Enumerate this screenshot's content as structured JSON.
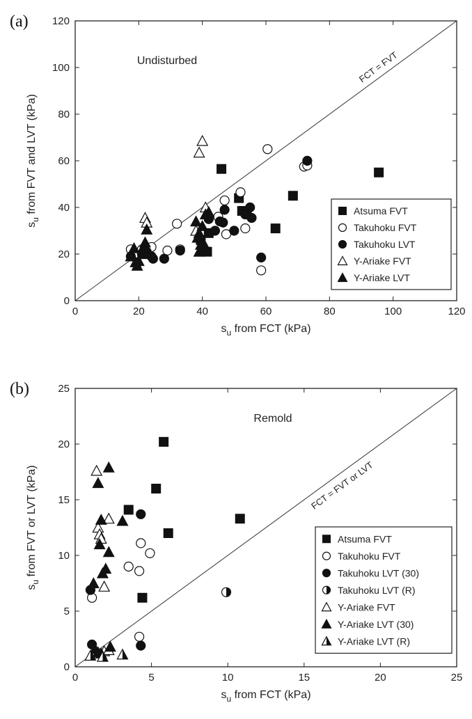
{
  "chart_data": [
    {
      "type": "scatter",
      "panel_label": "(a)",
      "annotation": "Undisturbed",
      "line_label": "FCT = FVT",
      "xlabel": {
        "main": "s",
        "sub": "u",
        "rest": " from FCT (kPa)"
      },
      "ylabel": {
        "main": "s",
        "sub": "u",
        "rest": " from FVT and LVT (kPa)"
      },
      "xlim": [
        0,
        120
      ],
      "ylim": [
        0,
        120
      ],
      "xticks": [
        0,
        20,
        40,
        60,
        80,
        100,
        120
      ],
      "yticks": [
        0,
        20,
        40,
        60,
        80,
        100,
        120
      ],
      "legend_position": "lower-right",
      "series": [
        {
          "name": "Atsuma FVT",
          "marker": "square-filled",
          "points": [
            [
              46,
              56.5
            ],
            [
              51.5,
              44
            ],
            [
              52.5,
              38.5
            ],
            [
              54,
              38
            ],
            [
              63,
              31
            ],
            [
              68.5,
              45
            ],
            [
              95.5,
              55
            ],
            [
              41.5,
              21
            ],
            [
              42,
              29
            ],
            [
              39.5,
              26
            ]
          ]
        },
        {
          "name": "Takuhoku FVT",
          "marker": "circle-open",
          "points": [
            [
              17.5,
              22
            ],
            [
              19,
              20
            ],
            [
              21,
              22
            ],
            [
              24,
              23
            ],
            [
              29,
              21.5
            ],
            [
              32,
              33
            ],
            [
              33,
              22
            ],
            [
              45,
              36
            ],
            [
              47,
              43
            ],
            [
              47.5,
              28.5
            ],
            [
              52,
              46.5
            ],
            [
              53.5,
              31
            ],
            [
              58.5,
              13
            ],
            [
              60.5,
              65
            ],
            [
              72,
              57.5
            ],
            [
              73,
              58
            ]
          ]
        },
        {
          "name": "Takuhoku LVT",
          "marker": "circle-filled",
          "points": [
            [
              17.5,
              19
            ],
            [
              21,
              20
            ],
            [
              22.5,
              21
            ],
            [
              24,
              19
            ],
            [
              24.5,
              18
            ],
            [
              28,
              18
            ],
            [
              33,
              21.5
            ],
            [
              42,
              35
            ],
            [
              44,
              30
            ],
            [
              45.5,
              34
            ],
            [
              46.5,
              33.5
            ],
            [
              47,
              39
            ],
            [
              50,
              30
            ],
            [
              53.5,
              37
            ],
            [
              55,
              40
            ],
            [
              55.5,
              35.5
            ],
            [
              58.5,
              18.5
            ],
            [
              73,
              60
            ]
          ]
        },
        {
          "name": "Y-Ariake FVT",
          "marker": "triangle-open",
          "points": [
            [
              22,
              35.5
            ],
            [
              22.5,
              33.5
            ],
            [
              38,
              30
            ],
            [
              39,
              63.5
            ],
            [
              40,
              68.5
            ],
            [
              41,
              40
            ],
            [
              42,
              38
            ]
          ]
        },
        {
          "name": "Y-Ariake LVT",
          "marker": "triangle-filled",
          "points": [
            [
              17.5,
              19
            ],
            [
              18.5,
              22.5
            ],
            [
              19,
              16.5
            ],
            [
              19.5,
              15
            ],
            [
              20,
              17
            ],
            [
              21,
              20
            ],
            [
              21.5,
              23
            ],
            [
              22,
              25
            ],
            [
              22.5,
              30.5
            ],
            [
              22,
              21
            ],
            [
              38,
              34
            ],
            [
              38.5,
              27
            ],
            [
              39,
              29
            ],
            [
              39,
              21
            ],
            [
              39.5,
              24
            ],
            [
              40,
              32
            ],
            [
              41,
              37
            ],
            [
              41,
              23
            ],
            [
              42,
              37.5
            ]
          ]
        }
      ]
    },
    {
      "type": "scatter",
      "panel_label": "(b)",
      "annotation": "Remold",
      "line_label": "FCT = FVT or LVT",
      "xlabel": {
        "main": "s",
        "sub": "u",
        "rest": " from FCT (kPa)"
      },
      "ylabel": {
        "main": "s",
        "sub": "u",
        "rest": " from FVT or LVT (kPa)"
      },
      "xlim": [
        0,
        25
      ],
      "ylim": [
        0,
        25
      ],
      "xticks": [
        0,
        5,
        10,
        15,
        20,
        25
      ],
      "yticks": [
        0,
        5,
        10,
        15,
        20,
        25
      ],
      "legend_position": "lower-right",
      "series": [
        {
          "name": "Atsuma FVT",
          "marker": "square-filled",
          "points": [
            [
              3.5,
              14.1
            ],
            [
              4.4,
              6.2
            ],
            [
              5.3,
              16
            ],
            [
              5.8,
              20.2
            ],
            [
              6.1,
              12
            ],
            [
              10.8,
              13.3
            ]
          ]
        },
        {
          "name": "Takuhoku FVT",
          "marker": "circle-open",
          "points": [
            [
              1.1,
              6.2
            ],
            [
              3.5,
              9
            ],
            [
              4.2,
              8.6
            ],
            [
              4.3,
              11.1
            ],
            [
              4.9,
              10.2
            ],
            [
              4.2,
              2.7
            ]
          ]
        },
        {
          "name": "Takuhoku LVT (30)",
          "marker": "circle-filled",
          "points": [
            [
              1,
              6.9
            ],
            [
              1.1,
              2
            ],
            [
              4.3,
              13.7
            ],
            [
              4.3,
              1.9
            ]
          ]
        },
        {
          "name": "Takuhoku LVT (R)",
          "marker": "circle-half",
          "points": [
            [
              9.9,
              6.7
            ]
          ]
        },
        {
          "name": "Y-Ariake FVT",
          "marker": "triangle-open",
          "points": [
            [
              1.4,
              17.6
            ],
            [
              1.5,
              12.5
            ],
            [
              1.6,
              11.9
            ],
            [
              1.7,
              11.5
            ],
            [
              1.9,
              7.2
            ],
            [
              2.2,
              13.3
            ],
            [
              1.2,
              1.2
            ],
            [
              1.9,
              1.4
            ],
            [
              2.2,
              1.5
            ]
          ]
        },
        {
          "name": "Y-Ariake LVT (30)",
          "marker": "triangle-filled",
          "points": [
            [
              1.2,
              7.5
            ],
            [
              1.5,
              16.5
            ],
            [
              1.6,
              11
            ],
            [
              1.7,
              13.2
            ],
            [
              1.8,
              8.4
            ],
            [
              2,
              8.8
            ],
            [
              2.2,
              10.3
            ],
            [
              2.2,
              17.9
            ],
            [
              3.1,
              13.1
            ],
            [
              1.3,
              1.6
            ],
            [
              1.5,
              1.3
            ],
            [
              1.7,
              1.2
            ],
            [
              2.3,
              1.8
            ]
          ]
        },
        {
          "name": "Y-Ariake LVT (R)",
          "marker": "triangle-half",
          "points": [
            [
              1,
              1
            ],
            [
              1.8,
              0.9
            ],
            [
              3.1,
              1.1
            ]
          ]
        }
      ]
    }
  ]
}
